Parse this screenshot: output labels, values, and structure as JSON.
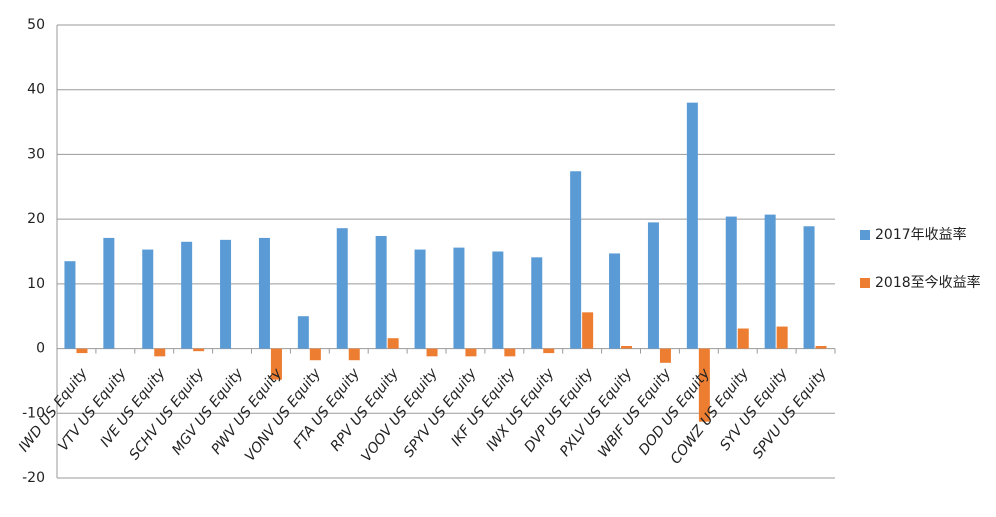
{
  "chart_data": {
    "type": "bar",
    "categories": [
      "IWD US Equity",
      "VTV US Equity",
      "IVE US Equity",
      "SCHV US Equity",
      "MGV US Equity",
      "PWV US Equity",
      "VONV US Equity",
      "FTA US Equity",
      "RPV US Equity",
      "VOOV US Equity",
      "SPYV US Equity",
      "IKF US Equity",
      "IWX US Equity",
      "DVP US Equity",
      "PXLV US Equity",
      "WBIF US Equity",
      "DOD US Equity",
      "COWZ US Equity",
      "SYV US Equity",
      "SPVU US Equity"
    ],
    "series": [
      {
        "name": "2017年收益率",
        "color": "#5b9bd5",
        "values": [
          13.5,
          17.1,
          15.3,
          16.5,
          16.8,
          17.1,
          5.0,
          18.6,
          17.4,
          15.3,
          15.6,
          15.0,
          14.1,
          27.4,
          14.7,
          19.5,
          38.0,
          20.4,
          20.7,
          18.9
        ]
      },
      {
        "name": "2018至今收益率",
        "color": "#ed7d31",
        "values": [
          -0.7,
          0,
          -1.2,
          -0.4,
          0,
          -4.8,
          -1.8,
          -1.8,
          1.6,
          -1.2,
          -1.2,
          -1.2,
          -0.7,
          5.6,
          0.4,
          -2.2,
          -11.3,
          3.1,
          3.4,
          0.4
        ]
      }
    ],
    "ylim": [
      -20,
      50
    ],
    "yticks": [
      -20,
      -10,
      0,
      10,
      20,
      30,
      40,
      50
    ],
    "grid": true,
    "legend": "right"
  }
}
